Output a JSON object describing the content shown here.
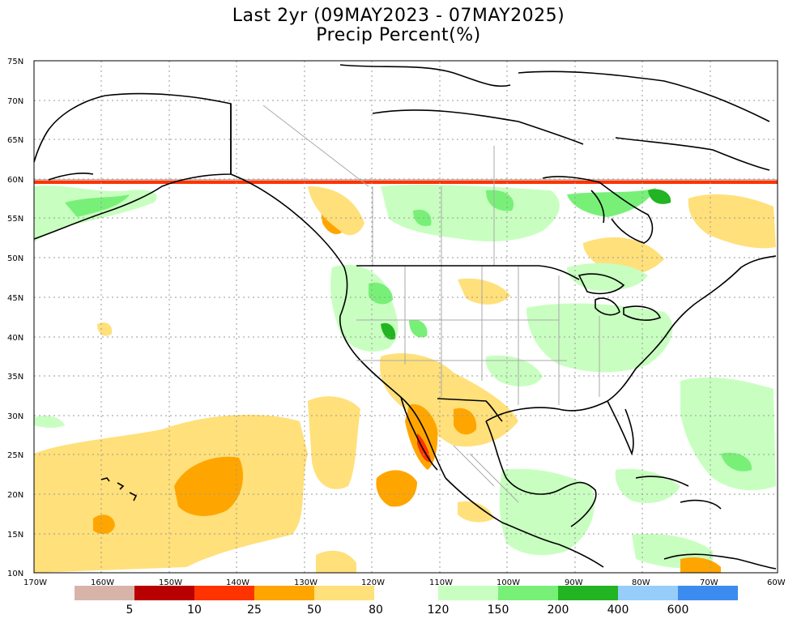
{
  "title": "Last 2yr (09MAY2023 - 07MAY2025)",
  "subtitle": "Precip Percent(%)",
  "lat_labels": [
    "75N",
    "70N",
    "65N",
    "60N",
    "55N",
    "50N",
    "45N",
    "40N",
    "35N",
    "30N",
    "25N",
    "20N",
    "15N",
    "10N"
  ],
  "lon_labels": [
    "170W",
    "160W",
    "150W",
    "140W",
    "130W",
    "120W",
    "110W",
    "100W",
    "90W",
    "80W",
    "70W",
    "60W"
  ],
  "colorbar": {
    "low": {
      "colors": [
        "#d8b4a8",
        "#b80000",
        "#ff3300",
        "#ffa500",
        "#ffe07a"
      ],
      "labels": [
        "5",
        "10",
        "25",
        "50",
        "80"
      ]
    },
    "high": {
      "colors": [
        "#c8ffc0",
        "#78f078",
        "#22b422",
        "#96cdfa",
        "#3c8cf0"
      ],
      "labels": [
        "120",
        "150",
        "200",
        "400",
        "600"
      ]
    }
  },
  "colors": {
    "land_outline": "#000000",
    "state_lines": "#aaaaaa",
    "grid": "#999999",
    "orange": "#ffa500",
    "yellow": "#ffe07a",
    "green_light": "#c8ffc0",
    "green_mid": "#78f078",
    "green_dark": "#22b422",
    "red": "#ff3300"
  }
}
